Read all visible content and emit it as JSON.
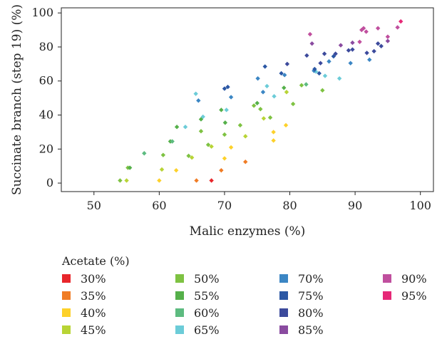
{
  "chart_data": {
    "type": "scatter",
    "title": "",
    "xlabel": "Malic enzymes (%)",
    "ylabel": "Succinate branch (step 19) (%)",
    "xlim": [
      45,
      102
    ],
    "ylim": [
      -5,
      103
    ],
    "xticks": [
      50,
      60,
      70,
      80,
      90,
      100
    ],
    "yticks": [
      0,
      20,
      40,
      60,
      80,
      100
    ],
    "grid": false,
    "legend": {
      "title": "Acetate (%)",
      "placement": "bottom",
      "entries": [
        {
          "label": "30%",
          "color": "#e8262b"
        },
        {
          "label": "35%",
          "color": "#f07c25"
        },
        {
          "label": "40%",
          "color": "#fdd12a"
        },
        {
          "label": "45%",
          "color": "#b8d435"
        },
        {
          "label": "50%",
          "color": "#7ec242"
        },
        {
          "label": "55%",
          "color": "#55b04a"
        },
        {
          "label": "60%",
          "color": "#5dbb80"
        },
        {
          "label": "65%",
          "color": "#6cccd8"
        },
        {
          "label": "70%",
          "color": "#3b86c4"
        },
        {
          "label": "75%",
          "color": "#2b57a4"
        },
        {
          "label": "80%",
          "color": "#3c4a9c"
        },
        {
          "label": "85%",
          "color": "#8a4ba0"
        },
        {
          "label": "90%",
          "color": "#c04f9e"
        },
        {
          "label": "95%",
          "color": "#e62877"
        }
      ]
    },
    "series": [
      {
        "name": "30%",
        "color": "#e8262b",
        "points": [
          [
            68,
            1.5
          ]
        ]
      },
      {
        "name": "35%",
        "color": "#f07c25",
        "points": [
          [
            65.7,
            1.5
          ],
          [
            69.5,
            7.5
          ],
          [
            73.2,
            12.5
          ]
        ]
      },
      {
        "name": "40%",
        "color": "#fdd12a",
        "points": [
          [
            60,
            1.5
          ],
          [
            62.6,
            7.5
          ],
          [
            70,
            14.5
          ],
          [
            71,
            21
          ],
          [
            77.5,
            25
          ],
          [
            77.5,
            30
          ],
          [
            79.4,
            34
          ]
        ]
      },
      {
        "name": "45%",
        "color": "#b8d435",
        "points": [
          [
            55,
            1.5
          ],
          [
            60.4,
            8
          ],
          [
            65,
            15
          ],
          [
            68,
            21.5
          ],
          [
            73.2,
            27.5
          ],
          [
            76,
            38
          ],
          [
            79.5,
            53.5
          ]
        ]
      },
      {
        "name": "50%",
        "color": "#7ec242",
        "points": [
          [
            54,
            1.5
          ],
          [
            55.2,
            9
          ],
          [
            60.6,
            16.5
          ],
          [
            64.5,
            16
          ],
          [
            66.4,
            30.5
          ],
          [
            67.5,
            22.5
          ],
          [
            70,
            28.5
          ],
          [
            72.4,
            34
          ],
          [
            74.5,
            45.5
          ],
          [
            75.5,
            43.5
          ],
          [
            77,
            38.5
          ],
          [
            80.5,
            46.5
          ],
          [
            81.8,
            57.5
          ],
          [
            85,
            54.5
          ]
        ]
      },
      {
        "name": "55%",
        "color": "#55b04a",
        "points": [
          [
            55.5,
            9
          ],
          [
            61.7,
            24.5
          ],
          [
            62.7,
            33
          ],
          [
            66.4,
            37.5
          ],
          [
            69.5,
            43
          ],
          [
            70.1,
            35.5
          ],
          [
            75,
            47
          ],
          [
            79.1,
            56
          ]
        ]
      },
      {
        "name": "60%",
        "color": "#5dbb80",
        "points": [
          [
            57.7,
            17.5
          ],
          [
            62,
            24.5
          ],
          [
            82.5,
            58
          ]
        ]
      },
      {
        "name": "65%",
        "color": "#6cccd8",
        "points": [
          [
            64,
            33
          ],
          [
            65.6,
            52.5
          ],
          [
            66.7,
            39
          ],
          [
            70.3,
            43
          ],
          [
            76.5,
            57
          ],
          [
            77.6,
            51
          ],
          [
            84,
            65.5
          ],
          [
            85.4,
            63
          ],
          [
            87.6,
            61.5
          ]
        ]
      },
      {
        "name": "70%",
        "color": "#3b86c4",
        "points": [
          [
            66,
            48.5
          ],
          [
            71,
            50.5
          ],
          [
            75.1,
            61.5
          ],
          [
            75.9,
            53.5
          ],
          [
            79.2,
            63.5
          ],
          [
            83.7,
            66
          ],
          [
            86,
            71.5
          ],
          [
            89.3,
            70.5
          ],
          [
            92.2,
            72.5
          ]
        ]
      },
      {
        "name": "75%",
        "color": "#2b57a4",
        "points": [
          [
            70,
            55.5
          ],
          [
            70.5,
            56.5
          ],
          [
            76.2,
            68.5
          ],
          [
            78.7,
            64.5
          ],
          [
            83.8,
            67
          ],
          [
            84.5,
            64.5
          ],
          [
            86.7,
            74.5
          ]
        ]
      },
      {
        "name": "80%",
        "color": "#3c4a9c",
        "points": [
          [
            79.6,
            70
          ],
          [
            82.6,
            75
          ],
          [
            84.7,
            70.5
          ],
          [
            85.3,
            76
          ],
          [
            87,
            76
          ],
          [
            89,
            78
          ],
          [
            89.6,
            78.5
          ],
          [
            91.8,
            76.5
          ],
          [
            92.9,
            77.5
          ],
          [
            93.5,
            82
          ],
          [
            94,
            80.5
          ]
        ]
      },
      {
        "name": "85%",
        "color": "#8a4ba0",
        "points": [
          [
            83.4,
            82
          ],
          [
            87.8,
            81
          ],
          [
            89.6,
            82.5
          ],
          [
            95,
            83.5
          ]
        ]
      },
      {
        "name": "90%",
        "color": "#c04f9e",
        "points": [
          [
            83.1,
            87.5
          ],
          [
            90.7,
            83
          ],
          [
            91,
            90
          ],
          [
            91.3,
            91
          ],
          [
            91.7,
            89
          ],
          [
            93.5,
            91
          ],
          [
            95,
            86
          ],
          [
            96.5,
            91.5
          ]
        ]
      },
      {
        "name": "95%",
        "color": "#e62877",
        "points": [
          [
            97,
            95
          ]
        ]
      }
    ]
  }
}
